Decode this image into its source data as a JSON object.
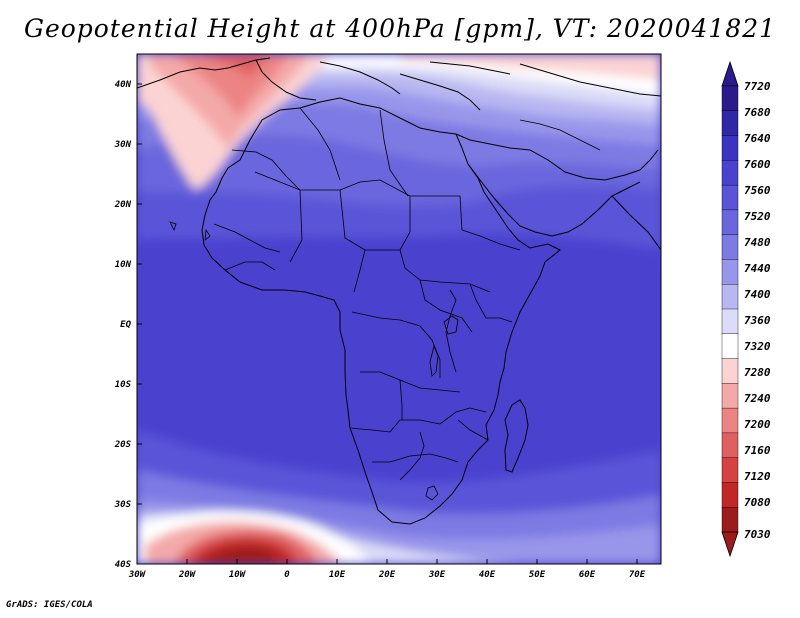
{
  "title": "Geopotential Height at 400hPa [gpm], VT: 2020041821",
  "credit": "GrADS: IGES/COLA",
  "lat_labels": [
    "40N",
    "30N",
    "20N",
    "10N",
    "EQ",
    "10S",
    "20S",
    "30S",
    "40S"
  ],
  "lon_labels": [
    "30W",
    "20W",
    "10W",
    "0",
    "10E",
    "20E",
    "30E",
    "40E",
    "50E",
    "60E",
    "70E"
  ],
  "colorbar": {
    "labels": [
      "7720",
      "7680",
      "7640",
      "7600",
      "7560",
      "7520",
      "7480",
      "7440",
      "7400",
      "7360",
      "7320",
      "7280",
      "7240",
      "7200",
      "7160",
      "7120",
      "7080",
      "7030"
    ],
    "colors": [
      "#2a1a8c",
      "#2f26a8",
      "#3a33bf",
      "#4a42cf",
      "#5a55d8",
      "#6a66dd",
      "#7d7ae3",
      "#9896ea",
      "#b8b7f1",
      "#dcdcf8",
      "#ffffff",
      "#fbd3d3",
      "#f4a9a9",
      "#ec8484",
      "#e06060",
      "#d44242",
      "#c02828",
      "#9c1b1b"
    ]
  }
}
